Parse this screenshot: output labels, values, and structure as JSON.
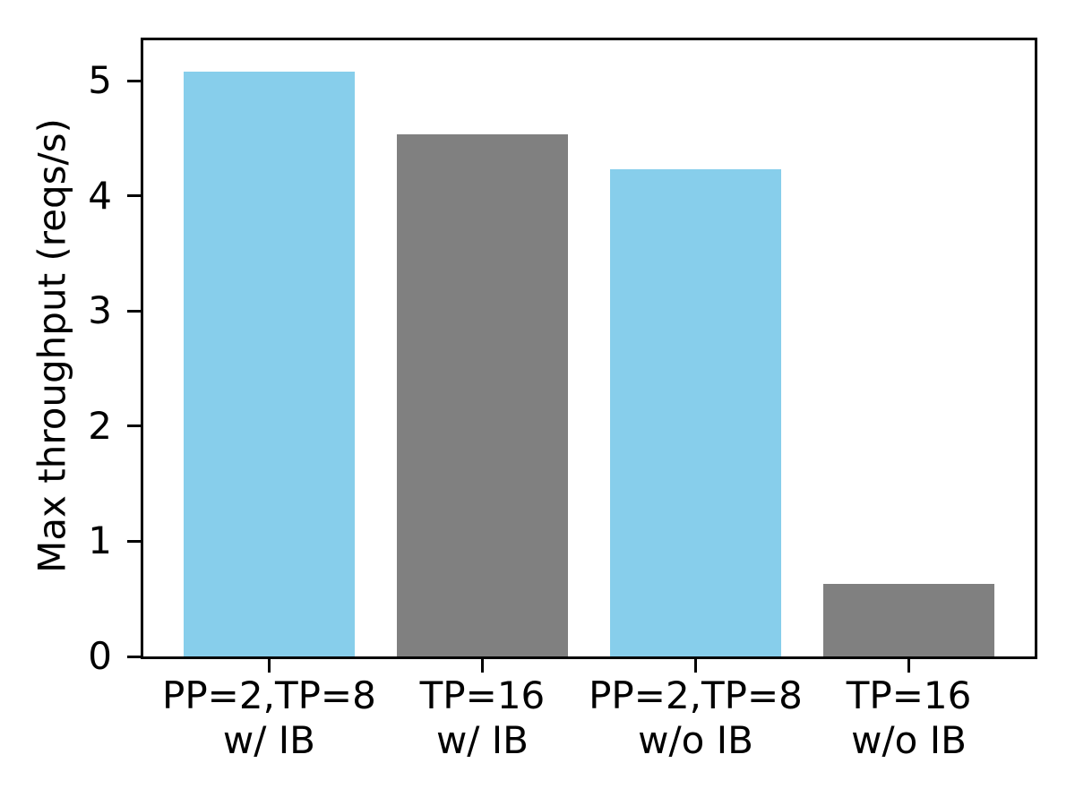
{
  "figure": {
    "background_color": "#ffffff",
    "axis_color": "#000000"
  },
  "chart_data": {
    "type": "bar",
    "title": "",
    "xlabel": "",
    "ylabel": "Max throughput (reqs/s)",
    "categories": [
      "PP=2,TP=8\nw/ IB",
      "TP=16\nw/ IB",
      "PP=2,TP=8\nw/o IB",
      "TP=16\nw/o IB"
    ],
    "values": [
      5.08,
      4.53,
      4.23,
      0.63
    ],
    "bar_colors": [
      "#87ceeb",
      "#808080",
      "#87ceeb",
      "#808080"
    ],
    "yticks": [
      0,
      1,
      2,
      3,
      4,
      5
    ],
    "ylim": [
      0,
      5.35
    ],
    "xlim": [
      -0.59,
      3.59
    ],
    "bar_width_units": 0.8,
    "grid": false,
    "legend_position": "none"
  }
}
